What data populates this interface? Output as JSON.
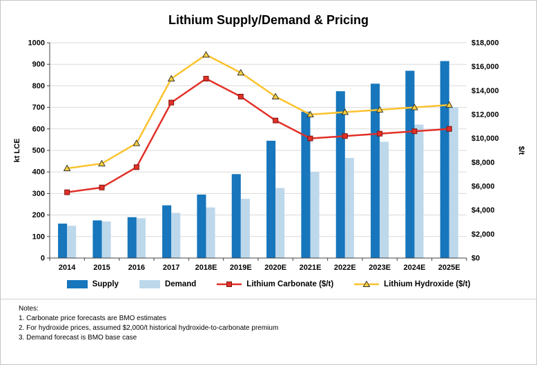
{
  "chart_data": {
    "type": "bar+line",
    "title": "Lithium Supply/Demand & Pricing",
    "categories": [
      "2014",
      "2015",
      "2016",
      "2017",
      "2018E",
      "2019E",
      "2020E",
      "2021E",
      "2022E",
      "2023E",
      "2024E",
      "2025E"
    ],
    "series": [
      {
        "name": "Supply",
        "type": "bar",
        "axis": "left",
        "color": "#1776bc",
        "values": [
          160,
          175,
          190,
          245,
          295,
          390,
          545,
          680,
          775,
          810,
          870,
          915
        ]
      },
      {
        "name": "Demand",
        "type": "bar",
        "axis": "left",
        "color": "#bdd8eb",
        "values": [
          150,
          170,
          185,
          210,
          235,
          275,
          325,
          400,
          465,
          540,
          620,
          700
        ]
      },
      {
        "name": "Lithium Carbonate ($/t)",
        "type": "line",
        "axis": "right",
        "color": "#e23028",
        "marker": "square",
        "marker_fill": "#e23028",
        "marker_stroke": "#7d1510",
        "values": [
          5500,
          5900,
          7600,
          13000,
          15000,
          13500,
          11500,
          10000,
          10200,
          10400,
          10600,
          10800
        ]
      },
      {
        "name": "Lithium Hydroxide ($/t)",
        "type": "line",
        "axis": "right",
        "color": "#fcc22d",
        "marker": "triangle",
        "marker_fill": "#ffd23f",
        "marker_stroke": "#333333",
        "values": [
          7500,
          7900,
          9600,
          15000,
          17000,
          15500,
          13500,
          12000,
          12200,
          12400,
          12600,
          12800
        ]
      }
    ],
    "left_axis": {
      "label": "kt LCE",
      "min": 0,
      "max": 1000,
      "step": 100,
      "prefix": ""
    },
    "right_axis": {
      "label": "$/t",
      "min": 0,
      "max": 18000,
      "step": 2000,
      "prefix": "$"
    },
    "grid": true,
    "gridline_color": "#d9d9d9",
    "axis_color": "#404040",
    "legend_position": "bottom"
  },
  "notes": {
    "label": "Notes:",
    "items": [
      "1. Carbonate price forecasts are BMO estimates",
      "2. For hydroxide prices, assumed $2,000/t historical hydroxide-to-carbonate premium",
      "3. Demand forecast is BMO base case"
    ]
  }
}
